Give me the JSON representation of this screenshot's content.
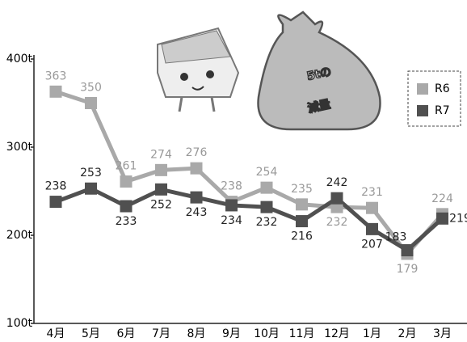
{
  "chart_data": {
    "type": "line",
    "categories": [
      "4月",
      "5月",
      "6月",
      "7月",
      "8月",
      "9月",
      "10月",
      "11月",
      "12月",
      "1月",
      "2月",
      "3月"
    ],
    "series": [
      {
        "name": "R6",
        "color": "#a9a9a9",
        "values": [
          363,
          350,
          261,
          274,
          276,
          238,
          254,
          235,
          232,
          231,
          179,
          224
        ]
      },
      {
        "name": "R7",
        "color": "#505050",
        "values": [
          238,
          253,
          233,
          252,
          243,
          234,
          232,
          216,
          242,
          207,
          183,
          219
        ]
      }
    ],
    "ylim": [
      100,
      400
    ],
    "yticks": [
      {
        "value": 100,
        "label": "100t"
      },
      {
        "value": 200,
        "label": "200t"
      },
      {
        "value": 300,
        "label": "300t"
      },
      {
        "value": 400,
        "label": "400t"
      }
    ],
    "annotation": [
      "5tの",
      "減量"
    ],
    "legend_position": "upper right"
  }
}
